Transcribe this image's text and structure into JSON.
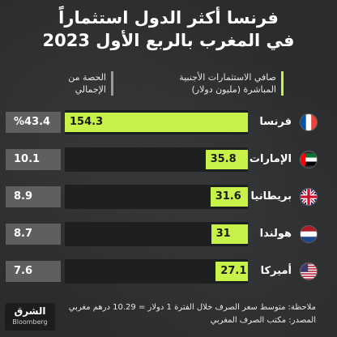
{
  "title_line1": "فرنسا أكثر الدول استثماراً",
  "title_line2": "في المغرب بالربع الأول 2023",
  "header": {
    "fdi_label": "صافي الاستثمارات الأجنبية المباشرة (مليون دولار)",
    "share_label": "الحصة من الإجمالي"
  },
  "chart_data": {
    "type": "bar",
    "categories": [
      "فرنسا",
      "الإمارات",
      "بريطانيا",
      "هولندا",
      "أميركا"
    ],
    "values": [
      154.3,
      35.8,
      31.6,
      31,
      27.1
    ],
    "shares": [
      "%43.4",
      "10.1",
      "8.9",
      "8.7",
      "7.6"
    ],
    "value_labels": [
      "154.3",
      "35.8",
      "31.6",
      "31",
      "27.1"
    ],
    "flags": [
      "flag-france",
      "flag-uae",
      "flag-uk",
      "flag-netherlands",
      "flag-usa"
    ],
    "xlim": [
      0,
      154.3
    ],
    "bar_color": "#c7f24a",
    "share_box_color": "#5d5f60"
  },
  "notes": {
    "note": "ملاحظة: متوسط سعر الصرف خلال الفترة 1 دولار = 10.29 درهم مغربي",
    "source": "المصدر: مكتب الصرف المغربي"
  },
  "logo": {
    "main": "الشرق",
    "sub": "Bloomberg"
  }
}
